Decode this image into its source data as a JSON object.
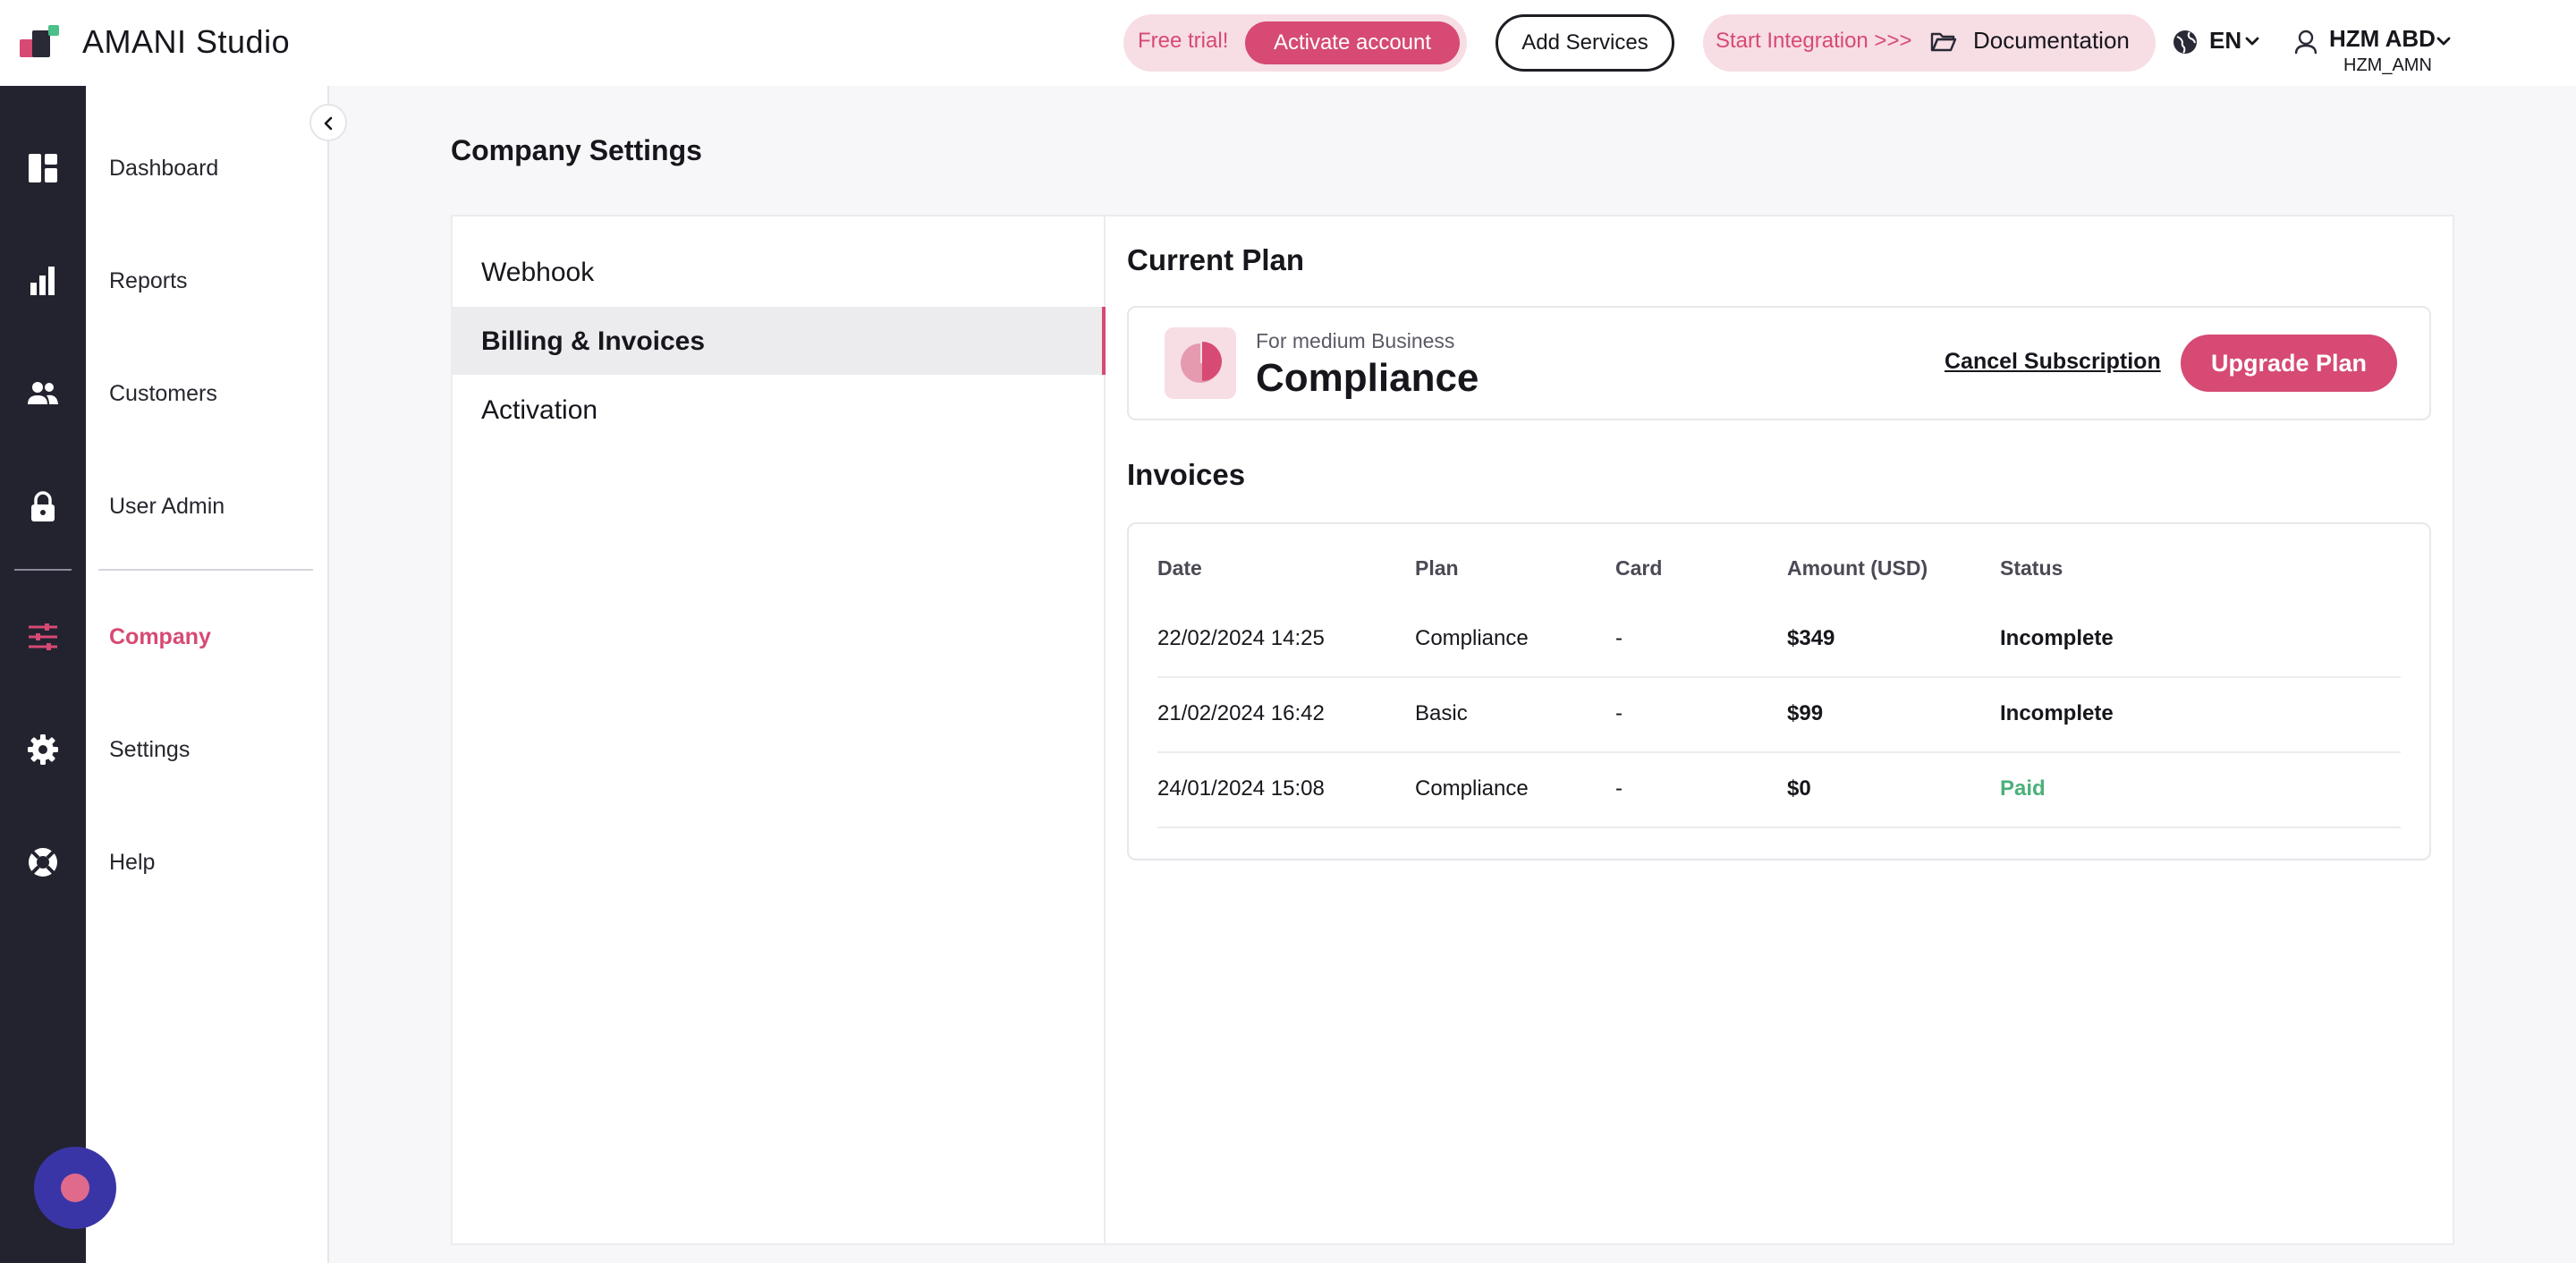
{
  "header": {
    "brand": "AMANI Studio",
    "trial_label": "Free trial!",
    "activate_label": "Activate account",
    "add_services_label": "Add Services",
    "integration_label": "Start Integration >>>",
    "documentation_label": "Documentation",
    "language": "EN",
    "user_name": "HZM ABD",
    "user_handle": "HZM_AMN"
  },
  "sidebar": {
    "items": [
      {
        "label": "Dashboard",
        "icon": "dashboard-icon"
      },
      {
        "label": "Reports",
        "icon": "bar-chart-icon"
      },
      {
        "label": "Customers",
        "icon": "users-icon"
      },
      {
        "label": "User Admin",
        "icon": "lock-icon"
      },
      {
        "label": "Company",
        "icon": "sliders-icon",
        "active": true
      },
      {
        "label": "Settings",
        "icon": "gear-icon"
      },
      {
        "label": "Help",
        "icon": "lifebuoy-icon"
      }
    ]
  },
  "page": {
    "title": "Company Settings",
    "tabs": [
      {
        "label": "Webhook"
      },
      {
        "label": "Billing & Invoices",
        "active": true
      },
      {
        "label": "Activation"
      }
    ]
  },
  "plan": {
    "section_title": "Current Plan",
    "subtitle": "For medium Business",
    "name": "Compliance",
    "cancel_label": "Cancel Subscription",
    "upgrade_label": "Upgrade Plan"
  },
  "invoices": {
    "section_title": "Invoices",
    "columns": [
      "Date",
      "Plan",
      "Card",
      "Amount (USD)",
      "Status"
    ],
    "rows": [
      {
        "date": "22/02/2024 14:25",
        "plan": "Compliance",
        "card": "-",
        "amount": "$349",
        "status": "Incomplete"
      },
      {
        "date": "21/02/2024 16:42",
        "plan": "Basic",
        "card": "-",
        "amount": "$99",
        "status": "Incomplete"
      },
      {
        "date": "24/01/2024 15:08",
        "plan": "Compliance",
        "card": "-",
        "amount": "$0",
        "status": "Paid"
      }
    ]
  },
  "colors": {
    "accent": "#d64a73",
    "rail": "#232330",
    "paid": "#4bb07a",
    "chat": "#3a35a6"
  }
}
